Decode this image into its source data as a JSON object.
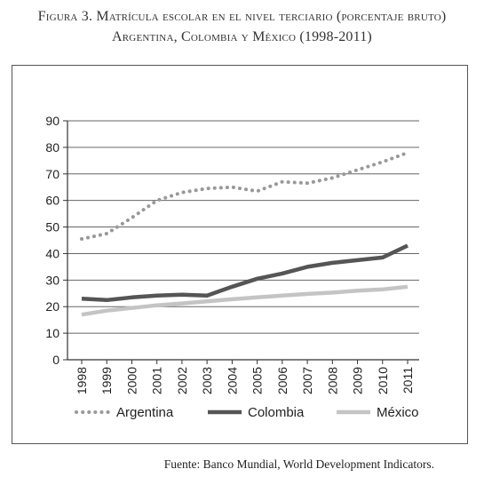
{
  "title_line1": "Figura 3. Matrícula escolar en el nivel terciario (porcentaje bruto)",
  "title_line2": "Argentina, Colombia y México (1998-2011)",
  "source": "Fuente: Banco Mundial, World Development Indicators.",
  "chart_data": {
    "type": "line",
    "title": "",
    "xlabel": "",
    "ylabel": "",
    "ylim": [
      0,
      90
    ],
    "yticks": [
      0,
      10,
      20,
      30,
      40,
      50,
      60,
      70,
      80,
      90
    ],
    "grid": "horizontal",
    "legend_position": "bottom",
    "x": [
      "1998",
      "1999",
      "2000",
      "2001",
      "2002",
      "2003",
      "2004",
      "2005",
      "2006",
      "2007",
      "2008",
      "2009",
      "2010",
      "2011"
    ],
    "series": [
      {
        "name": "Argentina",
        "color": "#999999",
        "style": "dotted",
        "values": [
          45.5,
          47.5,
          53.5,
          60,
          63,
          64.5,
          65,
          63.5,
          67,
          66.5,
          68.5,
          71.5,
          74.5,
          78
        ]
      },
      {
        "name": "Colombia",
        "color": "#555555",
        "style": "solid",
        "values": [
          23,
          22.5,
          23.5,
          24.2,
          24.5,
          24.2,
          27.5,
          30.5,
          32.5,
          35,
          36.5,
          37.5,
          38.5,
          43
        ]
      },
      {
        "name": "México",
        "color": "#c4c4c4",
        "style": "solid",
        "values": [
          17,
          18.5,
          19.5,
          20.5,
          21.2,
          22,
          22.8,
          23.5,
          24.2,
          24.8,
          25.3,
          26,
          26.5,
          27.5
        ]
      }
    ]
  }
}
